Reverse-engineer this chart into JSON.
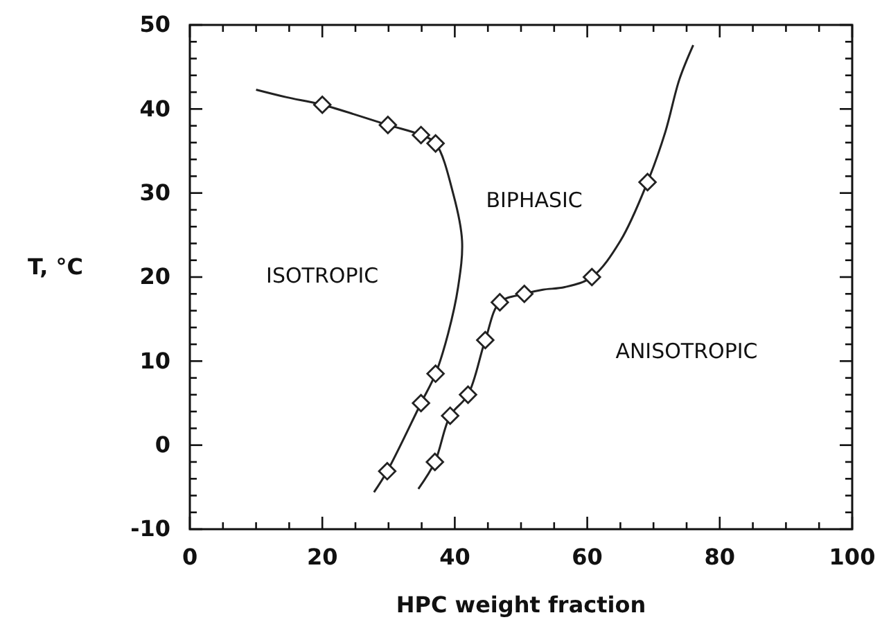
{
  "chart_data": {
    "type": "line",
    "xlabel": "HPC weight fraction",
    "ylabel": "T, °C",
    "xlim": [
      0,
      100
    ],
    "ylim": [
      -10,
      50
    ],
    "xticks": [
      0,
      {
        "value": 5,
        "label": null
      },
      {
        "value": 10,
        "label": null
      },
      {
        "value": 15,
        "label": null
      },
      20,
      {
        "value": 25,
        "label": null
      },
      {
        "value": 30,
        "label": null
      },
      {
        "value": 35,
        "label": null
      },
      40,
      {
        "value": 45,
        "label": null
      },
      {
        "value": 50,
        "label": null
      },
      {
        "value": 55,
        "label": null
      },
      60,
      {
        "value": 65,
        "label": null
      },
      {
        "value": 70,
        "label": null
      },
      {
        "value": 75,
        "label": null
      },
      80,
      {
        "value": 85,
        "label": null
      },
      {
        "value": 90,
        "label": null
      },
      {
        "value": 95,
        "label": null
      },
      100
    ],
    "yticks": [
      -10,
      {
        "value": -8,
        "label": null
      },
      {
        "value": -6,
        "label": null
      },
      {
        "value": -4,
        "label": null
      },
      {
        "value": -2,
        "label": null
      },
      0,
      {
        "value": 2,
        "label": null
      },
      {
        "value": 4,
        "label": null
      },
      {
        "value": 6,
        "label": null
      },
      {
        "value": 8,
        "label": null
      },
      10,
      {
        "value": 12,
        "label": null
      },
      {
        "value": 14,
        "label": null
      },
      {
        "value": 16,
        "label": null
      },
      {
        "value": 18,
        "label": null
      },
      20,
      {
        "value": 22,
        "label": null
      },
      {
        "value": 24,
        "label": null
      },
      {
        "value": 26,
        "label": null
      },
      {
        "value": 28,
        "label": null
      },
      30,
      {
        "value": 32,
        "label": null
      },
      {
        "value": 34,
        "label": null
      },
      {
        "value": 36,
        "label": null
      },
      {
        "value": 38,
        "label": null
      },
      40,
      {
        "value": 42,
        "label": null
      },
      {
        "value": 44,
        "label": null
      },
      {
        "value": 46,
        "label": null
      },
      {
        "value": 48,
        "label": null
      },
      50
    ],
    "grid": false,
    "series": [
      {
        "color": "#222222",
        "marker": "none",
        "line_style": "solid",
        "x": [
          10,
          14.6,
          20,
          29.9,
          34.9,
          37.1,
          39.8,
          41.1,
          40.5,
          39,
          37.1,
          34.9,
          29.8,
          27.8
        ],
        "values": [
          42.3,
          41.4,
          40.5,
          38.1,
          36.9,
          35.9,
          29.8,
          24.3,
          18.8,
          13.3,
          8.5,
          5,
          -3.1,
          -5.6
        ]
      },
      {
        "color": "#222222",
        "marker": "none",
        "line_style": "solid",
        "x": [
          34.5,
          37,
          39.3,
          42,
          44.6,
          46.8,
          50.5,
          53.3,
          56.6,
          60.7,
          65,
          69.1,
          71.8,
          73.9,
          76
        ],
        "values": [
          -5.2,
          -2,
          3.5,
          6,
          12.5,
          17,
          18,
          18.5,
          18.8,
          20,
          24.3,
          31.3,
          37.3,
          43.5,
          47.6
        ]
      },
      {
        "type": "scatter",
        "color": "#222222",
        "marker": "diamond",
        "x": [
          20,
          29.9,
          34.9,
          37.1,
          37.1,
          34.9,
          29.8
        ],
        "values": [
          40.5,
          38.1,
          36.9,
          35.9,
          8.5,
          5,
          -3.1
        ]
      },
      {
        "type": "scatter",
        "color": "#222222",
        "marker": "diamond",
        "x": [
          37,
          39.3,
          42,
          44.6,
          46.8,
          50.5,
          60.7,
          69.1
        ],
        "values": [
          -2,
          3.5,
          6,
          12.5,
          17,
          18,
          20,
          31.3
        ]
      }
    ],
    "annotations": [
      "ISOTROPIC",
      "BIPHASIC",
      "ANISOTROPIC"
    ]
  }
}
